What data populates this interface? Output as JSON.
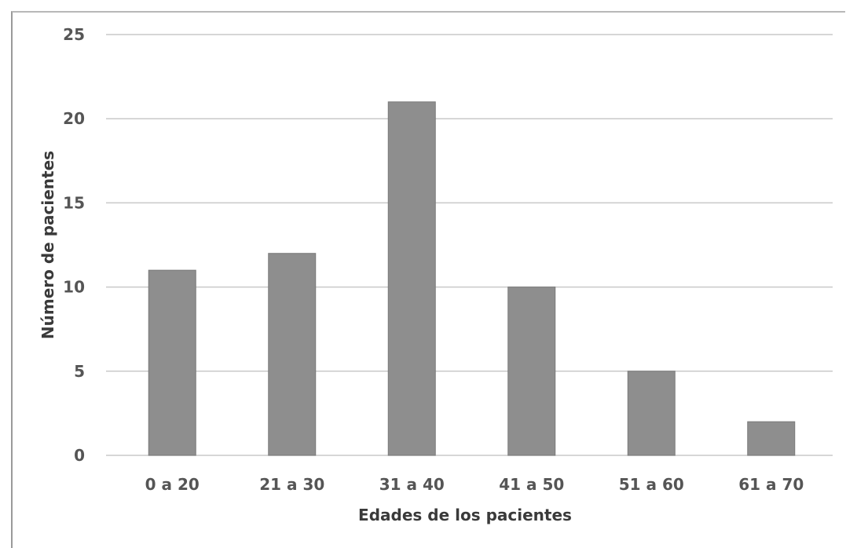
{
  "chart_data": {
    "type": "bar",
    "categories": [
      "0 a 20",
      "21 a 30",
      "31 a 40",
      "41 a 50",
      "51 a 60",
      "61 a 70"
    ],
    "values": [
      11,
      12,
      21,
      10,
      5,
      2
    ],
    "title": "",
    "xlabel": "Edades de los pacientes",
    "ylabel": "Número de pacientes",
    "ylim": [
      0,
      25
    ],
    "yticks": [
      0,
      5,
      10,
      15,
      20,
      25
    ],
    "grid": true,
    "bar_color": "#8e8e8e"
  }
}
